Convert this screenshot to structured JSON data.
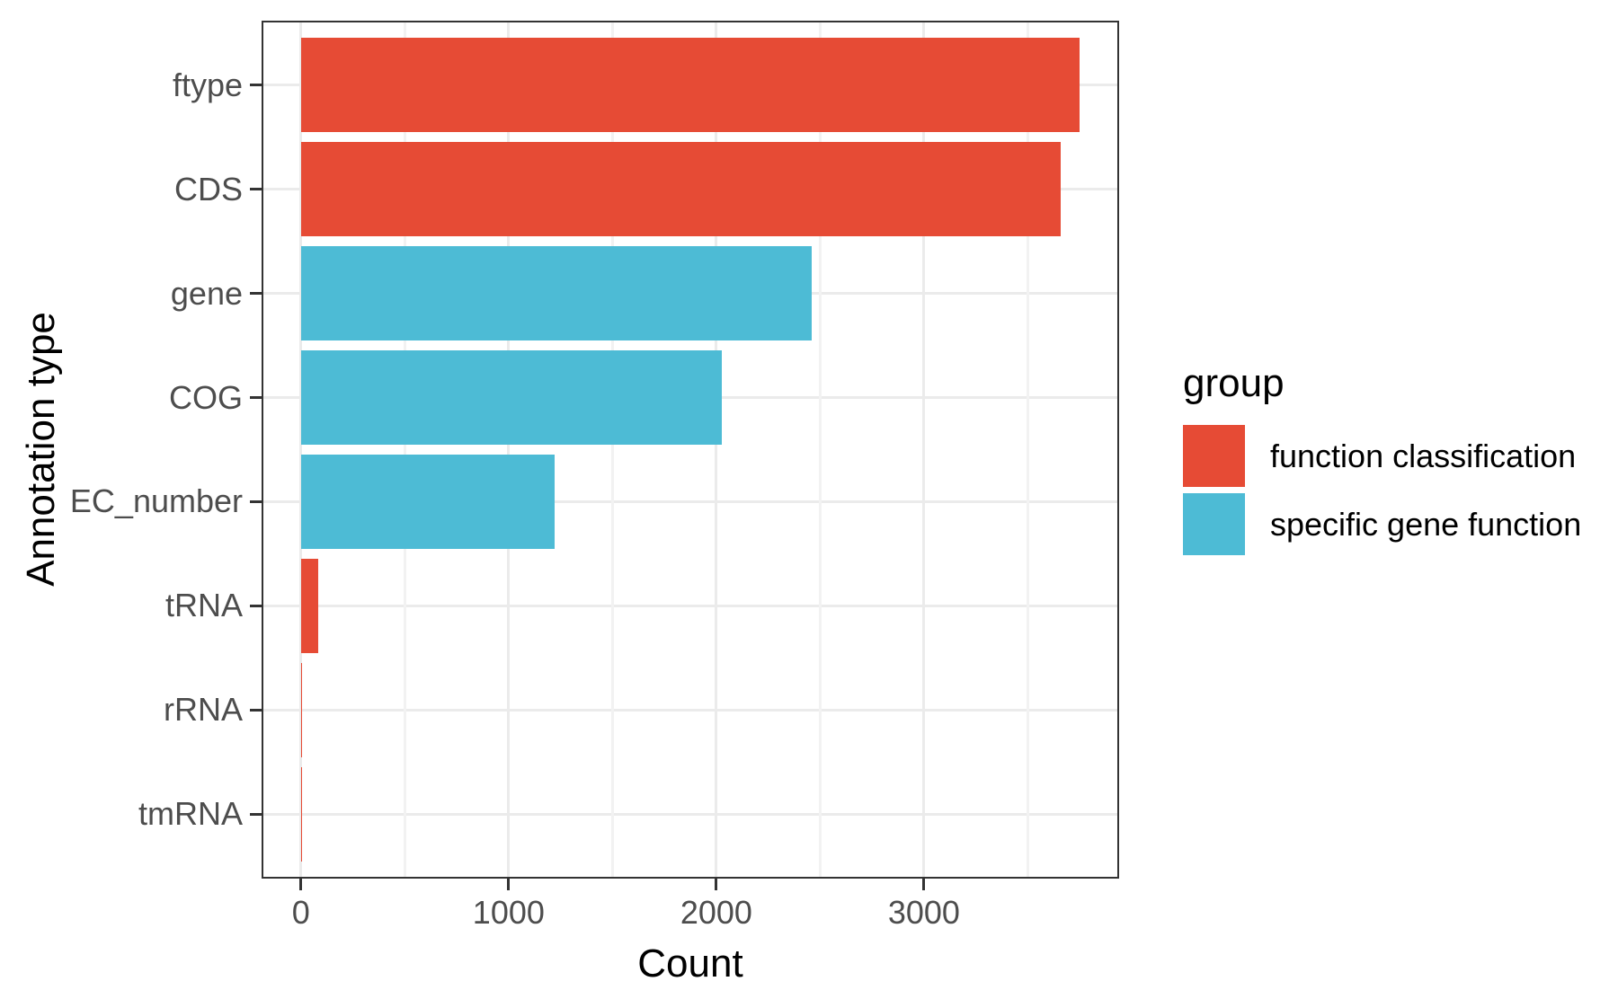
{
  "chart_data": {
    "type": "bar",
    "orientation": "horizontal",
    "xlabel": "Count",
    "ylabel": "Annotation type",
    "categories": [
      "ftype",
      "CDS",
      "gene",
      "COG",
      "EC_number",
      "tRNA",
      "rRNA",
      "tmRNA"
    ],
    "values": [
      3750,
      3660,
      2460,
      2025,
      1220,
      82,
      7,
      1
    ],
    "groups": [
      "function classification",
      "function classification",
      "specific gene function",
      "specific gene function",
      "specific gene function",
      "function classification",
      "function classification",
      "function classification"
    ],
    "group_colors": {
      "function classification": "#E64B35",
      "specific gene function": "#4DBBD5"
    },
    "x_ticks": [
      0,
      1000,
      2000,
      3000
    ],
    "x_tick_labels": [
      "0",
      "1000",
      "2000",
      "3000"
    ],
    "x_minor_ticks": [
      500,
      1500,
      2500,
      3500
    ],
    "xlim": [
      -181,
      3931
    ],
    "grid": "on",
    "panel_border_color": "#333333",
    "gridline_color": "#ebebeb",
    "tick_color": "#333333",
    "tick_label_color": "#4d4d4d",
    "legend": {
      "title": "group",
      "position": "right",
      "items": [
        {
          "label": "function classification",
          "color": "#E64B35"
        },
        {
          "label": "specific gene function",
          "color": "#4DBBD5"
        }
      ]
    }
  }
}
